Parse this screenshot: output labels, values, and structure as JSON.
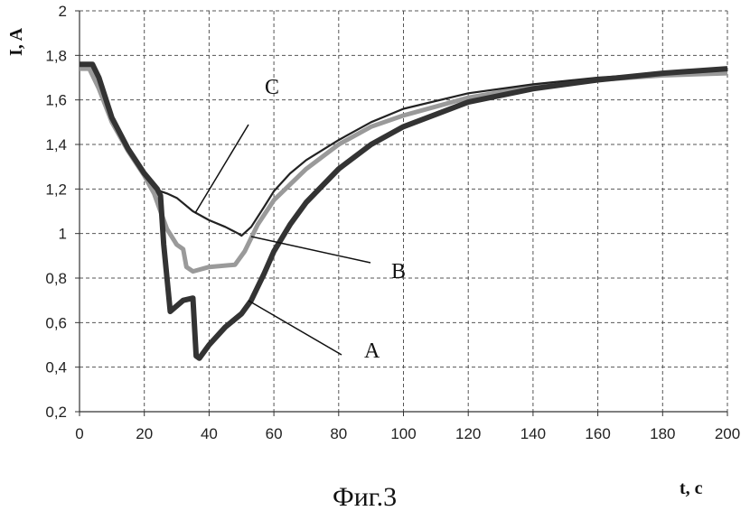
{
  "chart_data": {
    "type": "line",
    "title": "",
    "caption": "Фиг.3",
    "xlabel": "t, c",
    "ylabel": "I, A",
    "xlim": [
      0,
      200
    ],
    "ylim": [
      0.2,
      2
    ],
    "grid": true,
    "x_ticks": [
      0,
      20,
      40,
      60,
      80,
      100,
      120,
      140,
      160,
      180,
      200
    ],
    "x_tick_labels": [
      "0",
      "20",
      "40",
      "60",
      "80",
      "100",
      "120",
      "140",
      "160",
      "180",
      "200"
    ],
    "y_ticks": [
      0.2,
      0.4,
      0.6,
      0.8,
      1.0,
      1.2,
      1.4,
      1.6,
      1.8,
      2.0
    ],
    "y_tick_labels": [
      "0,2",
      "0,4",
      "0,6",
      "0,8",
      "1",
      "1,2",
      "1,4",
      "1,6",
      "1,8",
      "2"
    ],
    "series": [
      {
        "name": "A",
        "color": "#333333",
        "x": [
          0,
          4,
          6,
          10,
          15,
          20,
          24,
          25,
          26,
          27,
          28,
          32,
          35,
          36,
          37,
          40,
          45,
          50,
          53,
          57,
          60,
          65,
          70,
          80,
          90,
          100,
          120,
          140,
          160,
          180,
          200
        ],
        "y": [
          1.76,
          1.76,
          1.7,
          1.52,
          1.38,
          1.27,
          1.2,
          1.17,
          0.95,
          0.8,
          0.65,
          0.7,
          0.71,
          0.45,
          0.44,
          0.5,
          0.58,
          0.64,
          0.7,
          0.82,
          0.92,
          1.04,
          1.14,
          1.29,
          1.4,
          1.48,
          1.59,
          1.65,
          1.69,
          1.72,
          1.74
        ]
      },
      {
        "name": "B",
        "color": "#9a9a9a",
        "x": [
          0,
          3,
          6,
          10,
          15,
          20,
          23,
          25,
          27,
          30,
          32,
          33,
          35,
          40,
          48,
          51,
          55,
          60,
          70,
          80,
          90,
          100,
          120,
          140,
          160,
          180,
          200
        ],
        "y": [
          1.74,
          1.74,
          1.65,
          1.5,
          1.37,
          1.26,
          1.18,
          1.1,
          1.02,
          0.95,
          0.93,
          0.85,
          0.83,
          0.85,
          0.86,
          0.92,
          1.04,
          1.15,
          1.29,
          1.4,
          1.48,
          1.53,
          1.61,
          1.66,
          1.69,
          1.71,
          1.72
        ]
      },
      {
        "name": "C",
        "color": "#222222",
        "x": [
          0,
          4,
          6,
          10,
          15,
          20,
          24,
          25,
          27,
          30,
          35,
          40,
          45,
          49,
          50,
          53,
          57,
          60,
          65,
          70,
          80,
          90,
          100,
          120,
          140,
          160,
          180,
          200
        ],
        "y": [
          1.76,
          1.76,
          1.7,
          1.52,
          1.38,
          1.27,
          1.2,
          1.19,
          1.18,
          1.16,
          1.1,
          1.06,
          1.03,
          1.0,
          0.99,
          1.03,
          1.12,
          1.19,
          1.27,
          1.33,
          1.42,
          1.5,
          1.56,
          1.63,
          1.67,
          1.7,
          1.72,
          1.74
        ]
      }
    ],
    "annotations": [
      "C",
      "B",
      "A"
    ]
  }
}
